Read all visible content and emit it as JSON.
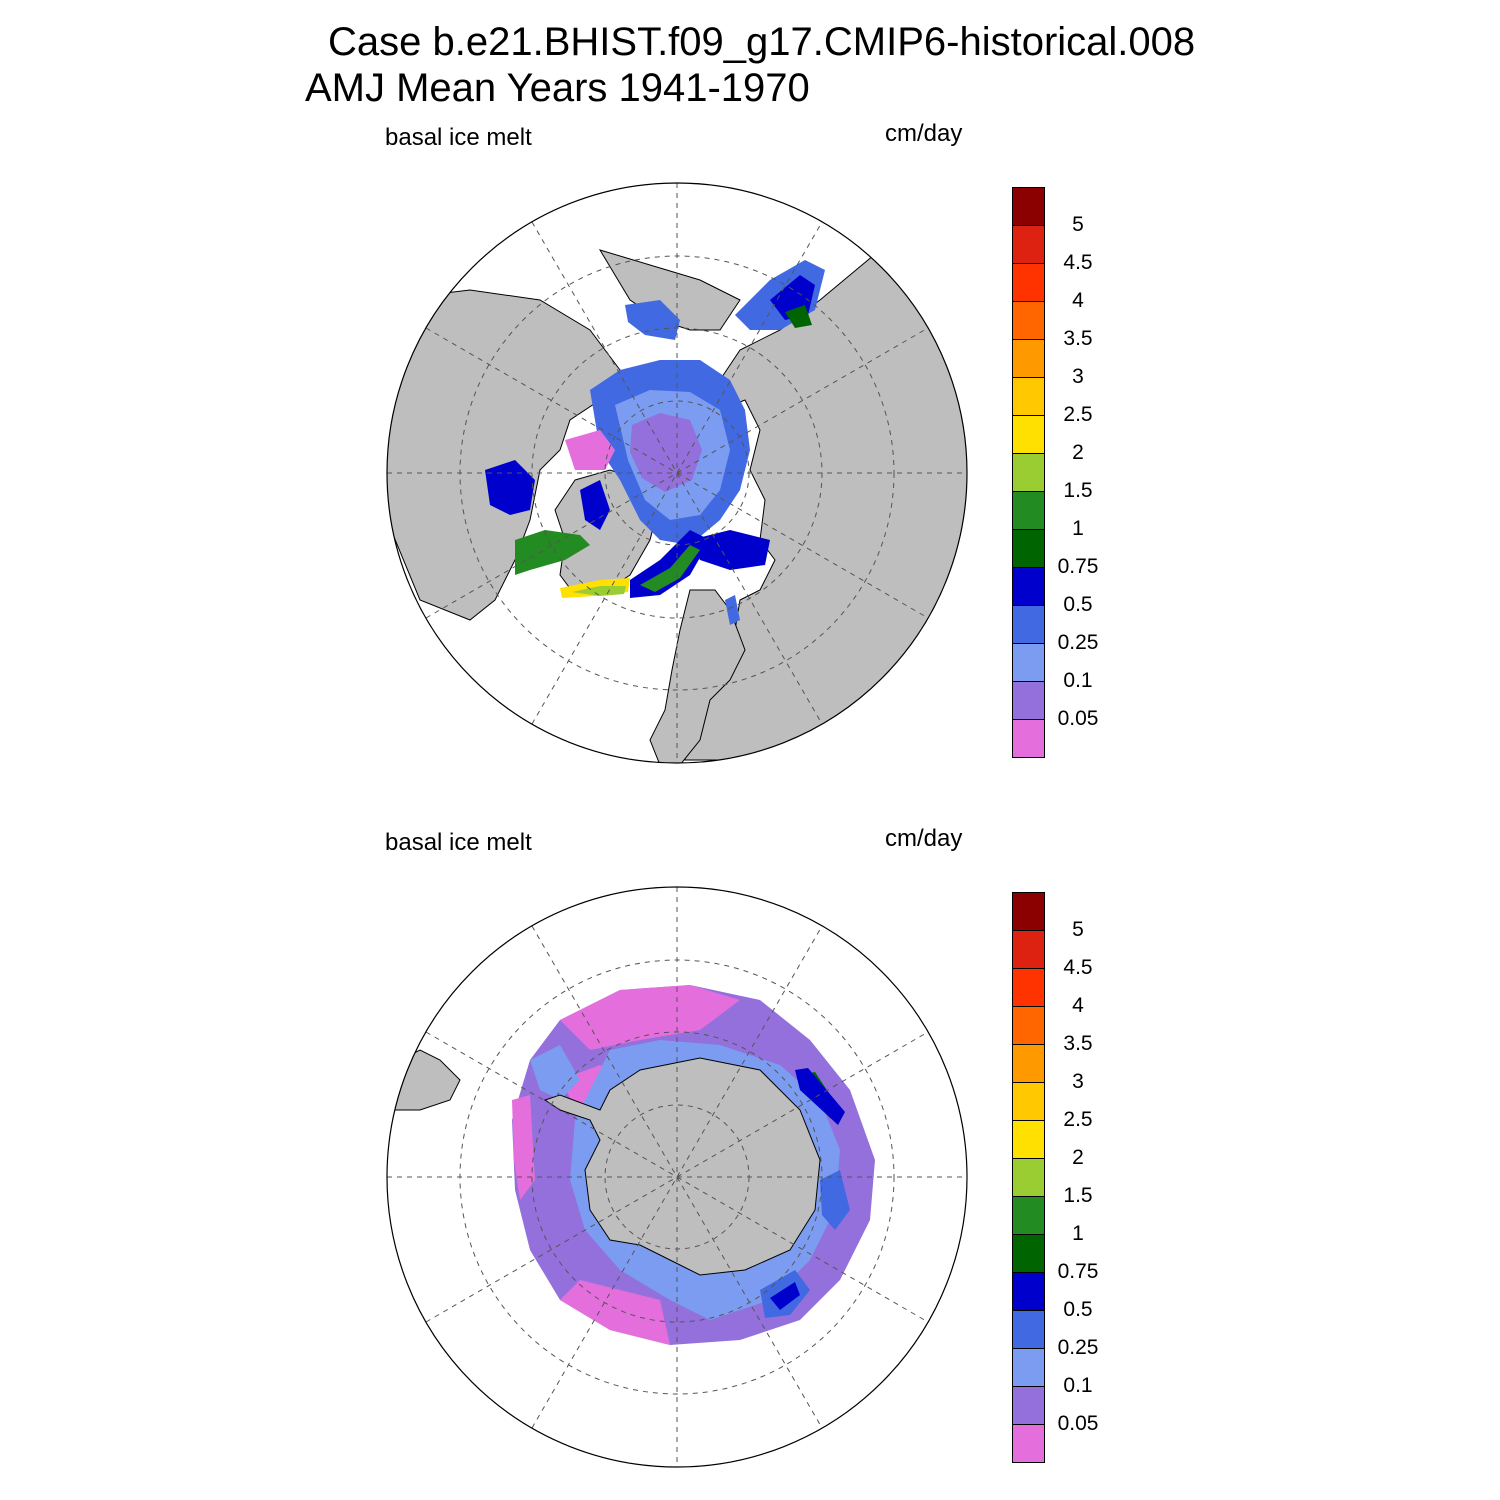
{
  "title": {
    "line1": "Case b.e21.BHIST.f09_g17.CMIP6-historical.008",
    "line2": "AMJ Mean   Years 1941-1970"
  },
  "panels": [
    {
      "id": "arctic",
      "variable_label": "basal ice melt",
      "units_label": "cm/day",
      "hemisphere": "north"
    },
    {
      "id": "antarctic",
      "variable_label": "basal ice melt",
      "units_label": "cm/day",
      "hemisphere": "south"
    }
  ],
  "colorbar": {
    "levels": [
      "0.05",
      "0.1",
      "0.25",
      "0.5",
      "0.75",
      "1",
      "1.5",
      "2",
      "2.5",
      "3",
      "3.5",
      "4",
      "4.5",
      "5"
    ],
    "colors": [
      "#E46FDC",
      "#9370DB",
      "#7B9CF0",
      "#4169E1",
      "#0000CD",
      "#006400",
      "#228B22",
      "#9ACD32",
      "#FFE000",
      "#FFC800",
      "#FF9900",
      "#FF6600",
      "#FF3300",
      "#DD2211",
      "#8B0000"
    ]
  },
  "land_color": "#BEBEBE",
  "missing_color": "#FFFFFF"
}
